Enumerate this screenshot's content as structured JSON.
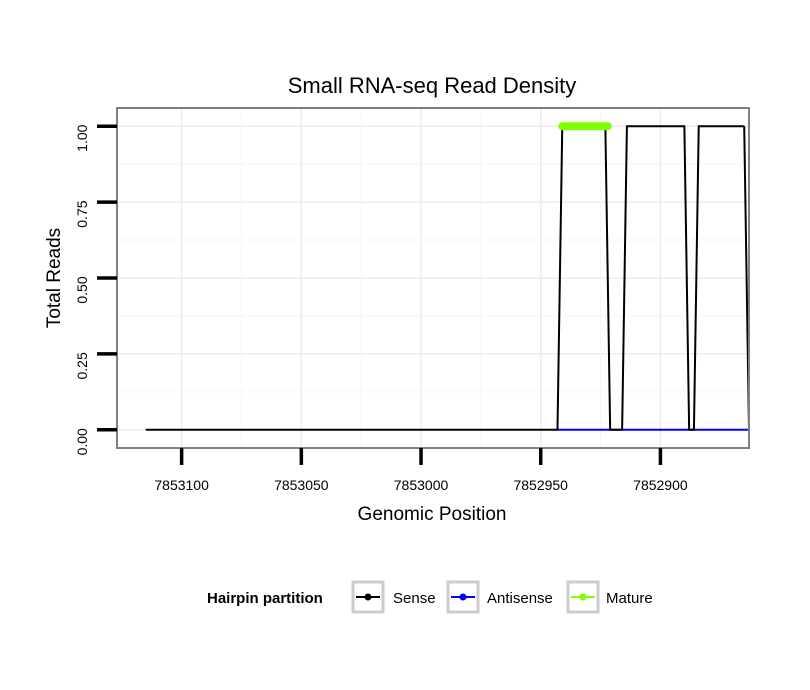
{
  "chart_data": {
    "type": "line",
    "title": "Small RNA-seq Read Density",
    "xlabel": "Genomic Position",
    "ylabel": "Total Reads",
    "x_reversed": true,
    "xlim": [
      7853127,
      7852863
    ],
    "ylim": [
      -0.06,
      1.06
    ],
    "x_ticks": [
      7853100,
      7853050,
      7853000,
      7852950,
      7852900
    ],
    "x_tick_labels": [
      "7853100",
      "7853050",
      "7853000",
      "7852950",
      "7852900"
    ],
    "y_ticks": [
      0,
      0.25,
      0.5,
      0.75,
      1.0
    ],
    "y_tick_labels": [
      "0.00",
      "0.25",
      "0.50",
      "0.75",
      "1.00"
    ],
    "grid": true,
    "legend": {
      "title": "Hairpin partition",
      "position": "bottom",
      "entries": [
        "Sense",
        "Antisense",
        "Mature"
      ]
    },
    "series": [
      {
        "name": "Sense",
        "color": "#000000",
        "x": [
          7853115,
          7852943,
          7852941,
          7852923,
          7852921,
          7852916,
          7852914,
          7852890,
          7852888,
          7852886,
          7852884,
          7852865
        ],
        "y": [
          0,
          0,
          1,
          1,
          0,
          0,
          1,
          1,
          0,
          0,
          1,
          1
        ],
        "tail": {
          "x": [
            7852863
          ],
          "y": [
            0
          ]
        }
      },
      {
        "name": "Antisense",
        "color": "#0000ff",
        "x": [
          7852943,
          7852863
        ],
        "y": [
          0,
          0
        ]
      },
      {
        "name": "Mature",
        "color": "#7fff00",
        "x": [
          7852941,
          7852922
        ],
        "y": [
          1,
          1
        ]
      }
    ]
  }
}
